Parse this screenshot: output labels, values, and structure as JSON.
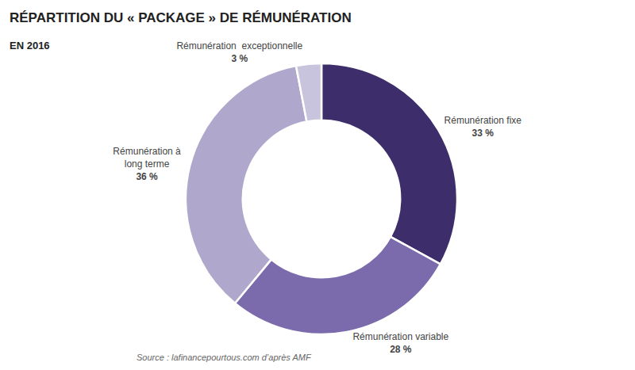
{
  "chart_data": {
    "type": "donut",
    "title": "RÉPARTITION DU « PACKAGE » DE RÉMUNÉRATION",
    "subtitle": "EN 2016",
    "annotations": [
      "Source : lafinancepourtous.com d’après AMF"
    ],
    "categories": [
      "Rémunération fixe",
      "Rémunération variable",
      "Rémunération à\nlong terme",
      "Rémunération  exceptionnelle"
    ],
    "values": [
      33,
      28,
      36,
      3
    ],
    "value_labels": [
      "33 %",
      "28 %",
      "36 %",
      "3 %"
    ],
    "colors": [
      "#3d2d6b",
      "#7b6bad",
      "#b0a8cc",
      "#c9c4dd"
    ],
    "data_labels": true
  }
}
